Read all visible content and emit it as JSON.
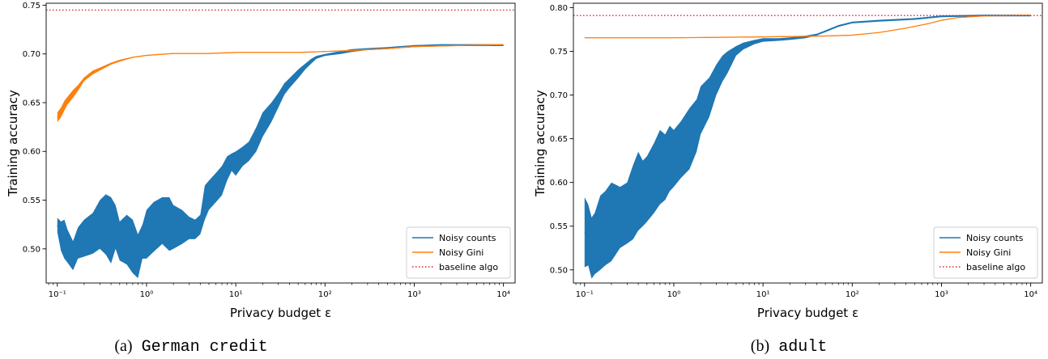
{
  "colors": {
    "counts": "#1f77b4",
    "gini": "#ff7f0e",
    "baseline": "#d62728"
  },
  "chart_data": [
    {
      "type": "line",
      "caption_prefix": "(a)",
      "caption_dataset": "German credit",
      "xlabel": "Privacy budget ε",
      "ylabel": "Training accuracy",
      "xscale": "log",
      "xlim": [
        0.075,
        13500
      ],
      "ylim": [
        0.465,
        0.752
      ],
      "x_ticks": [
        {
          "value": 0.1,
          "label": "10⁻¹"
        },
        {
          "value": 1,
          "label": "10⁰"
        },
        {
          "value": 10,
          "label": "10¹"
        },
        {
          "value": 100,
          "label": "10²"
        },
        {
          "value": 1000,
          "label": "10³"
        },
        {
          "value": 10000,
          "label": "10⁴"
        }
      ],
      "y_ticks": [
        0.5,
        0.55,
        0.6,
        0.65,
        0.7,
        0.75
      ],
      "y_tick_labels": [
        "0.50",
        "0.55",
        "0.60",
        "0.65",
        "0.70",
        "0.75"
      ],
      "grid": false,
      "legend": "bottom-right",
      "baseline": {
        "name": "baseline algo",
        "y": 0.745
      },
      "series": [
        {
          "name": "Noisy counts",
          "color_key": "counts",
          "points": [
            [
              0.1,
              0.517,
              0.532
            ],
            [
              0.11,
              0.498,
              0.528
            ],
            [
              0.12,
              0.49,
              0.53
            ],
            [
              0.13,
              0.486,
              0.52
            ],
            [
              0.15,
              0.478,
              0.508
            ],
            [
              0.17,
              0.49,
              0.522
            ],
            [
              0.2,
              0.492,
              0.53
            ],
            [
              0.25,
              0.495,
              0.537
            ],
            [
              0.3,
              0.5,
              0.55
            ],
            [
              0.35,
              0.494,
              0.556
            ],
            [
              0.4,
              0.485,
              0.553
            ],
            [
              0.45,
              0.5,
              0.545
            ],
            [
              0.5,
              0.488,
              0.528
            ],
            [
              0.6,
              0.484,
              0.535
            ],
            [
              0.7,
              0.475,
              0.53
            ],
            [
              0.8,
              0.47,
              0.515
            ],
            [
              0.9,
              0.49,
              0.525
            ],
            [
              1.0,
              0.49,
              0.54
            ],
            [
              1.2,
              0.497,
              0.548
            ],
            [
              1.5,
              0.505,
              0.553
            ],
            [
              1.8,
              0.498,
              0.553
            ],
            [
              2.0,
              0.5,
              0.545
            ],
            [
              2.5,
              0.505,
              0.54
            ],
            [
              3.0,
              0.51,
              0.533
            ],
            [
              3.5,
              0.51,
              0.53
            ],
            [
              4.0,
              0.515,
              0.535
            ],
            [
              4.5,
              0.53,
              0.565
            ],
            [
              5.0,
              0.54,
              0.57
            ],
            [
              6.0,
              0.548,
              0.578
            ],
            [
              7.0,
              0.555,
              0.585
            ],
            [
              8.0,
              0.57,
              0.595
            ],
            [
              9.0,
              0.58,
              0.598
            ],
            [
              10,
              0.575,
              0.6
            ],
            [
              12,
              0.585,
              0.605
            ],
            [
              14,
              0.59,
              0.61
            ],
            [
              17,
              0.6,
              0.625
            ],
            [
              20,
              0.615,
              0.64
            ],
            [
              25,
              0.63,
              0.65
            ],
            [
              30,
              0.645,
              0.66
            ],
            [
              35,
              0.658,
              0.67
            ],
            [
              40,
              0.665,
              0.675
            ],
            [
              50,
              0.675,
              0.684
            ],
            [
              60,
              0.684,
              0.69
            ],
            [
              70,
              0.69,
              0.695
            ],
            [
              80,
              0.695,
              0.698
            ],
            [
              100,
              0.698,
              0.7
            ],
            [
              150,
              0.7,
              0.703
            ],
            [
              200,
              0.702,
              0.705
            ],
            [
              300,
              0.704,
              0.706
            ],
            [
              500,
              0.705,
              0.707
            ],
            [
              700,
              0.706,
              0.708
            ],
            [
              1000,
              0.707,
              0.709
            ],
            [
              2000,
              0.708,
              0.71
            ],
            [
              5000,
              0.708,
              0.71
            ],
            [
              10000,
              0.708,
              0.71
            ]
          ]
        },
        {
          "name": "Noisy Gini",
          "color_key": "gini",
          "points": [
            [
              0.1,
              0.63,
              0.64
            ],
            [
              0.11,
              0.635,
              0.645
            ],
            [
              0.12,
              0.642,
              0.652
            ],
            [
              0.13,
              0.648,
              0.656
            ],
            [
              0.15,
              0.655,
              0.663
            ],
            [
              0.17,
              0.662,
              0.668
            ],
            [
              0.2,
              0.672,
              0.676
            ],
            [
              0.25,
              0.679,
              0.683
            ],
            [
              0.3,
              0.683,
              0.686
            ],
            [
              0.4,
              0.689,
              0.691
            ],
            [
              0.5,
              0.692,
              0.694
            ],
            [
              0.7,
              0.696,
              0.697
            ],
            [
              1,
              0.698,
              0.699
            ],
            [
              2,
              0.7,
              0.701
            ],
            [
              5,
              0.7,
              0.701
            ],
            [
              10,
              0.701,
              0.702
            ],
            [
              50,
              0.701,
              0.702
            ],
            [
              100,
              0.702,
              0.703
            ],
            [
              200,
              0.703,
              0.704
            ],
            [
              500,
              0.705,
              0.706
            ],
            [
              1000,
              0.707,
              0.708
            ],
            [
              3000,
              0.708,
              0.709
            ],
            [
              10000,
              0.709,
              0.71
            ]
          ]
        }
      ]
    },
    {
      "type": "line",
      "caption_prefix": "(b)",
      "caption_dataset": "adult",
      "xlabel": "Privacy budget ε",
      "ylabel": "Training accuracy",
      "xscale": "log",
      "xlim": [
        0.075,
        13500
      ],
      "ylim": [
        0.485,
        0.805
      ],
      "x_ticks": [
        {
          "value": 0.1,
          "label": "10⁻¹"
        },
        {
          "value": 1,
          "label": "10⁰"
        },
        {
          "value": 10,
          "label": "10¹"
        },
        {
          "value": 100,
          "label": "10²"
        },
        {
          "value": 1000,
          "label": "10³"
        },
        {
          "value": 10000,
          "label": "10⁴"
        }
      ],
      "y_ticks": [
        0.5,
        0.55,
        0.6,
        0.65,
        0.7,
        0.75,
        0.8
      ],
      "y_tick_labels": [
        "0.50",
        "0.55",
        "0.60",
        "0.65",
        "0.70",
        "0.75",
        "0.80"
      ],
      "grid": false,
      "legend": "bottom-right",
      "baseline": {
        "name": "baseline algo",
        "y": 0.791
      },
      "series": [
        {
          "name": "Noisy counts",
          "color_key": "counts",
          "points": [
            [
              0.1,
              0.503,
              0.583
            ],
            [
              0.11,
              0.505,
              0.575
            ],
            [
              0.12,
              0.49,
              0.56
            ],
            [
              0.13,
              0.495,
              0.565
            ],
            [
              0.15,
              0.5,
              0.585
            ],
            [
              0.17,
              0.505,
              0.59
            ],
            [
              0.2,
              0.51,
              0.6
            ],
            [
              0.25,
              0.525,
              0.595
            ],
            [
              0.3,
              0.53,
              0.6
            ],
            [
              0.35,
              0.535,
              0.62
            ],
            [
              0.4,
              0.545,
              0.635
            ],
            [
              0.45,
              0.55,
              0.625
            ],
            [
              0.5,
              0.555,
              0.63
            ],
            [
              0.6,
              0.565,
              0.645
            ],
            [
              0.7,
              0.575,
              0.66
            ],
            [
              0.8,
              0.58,
              0.655
            ],
            [
              0.9,
              0.59,
              0.665
            ],
            [
              1.0,
              0.595,
              0.66
            ],
            [
              1.2,
              0.605,
              0.67
            ],
            [
              1.5,
              0.615,
              0.685
            ],
            [
              1.8,
              0.635,
              0.695
            ],
            [
              2.0,
              0.655,
              0.71
            ],
            [
              2.5,
              0.675,
              0.72
            ],
            [
              3.0,
              0.7,
              0.735
            ],
            [
              3.5,
              0.715,
              0.745
            ],
            [
              4.0,
              0.725,
              0.75
            ],
            [
              5.0,
              0.745,
              0.756
            ],
            [
              6.0,
              0.752,
              0.76
            ],
            [
              8.0,
              0.758,
              0.763
            ],
            [
              10,
              0.761,
              0.765
            ],
            [
              15,
              0.762,
              0.765
            ],
            [
              20,
              0.763,
              0.766
            ],
            [
              30,
              0.765,
              0.768
            ],
            [
              40,
              0.768,
              0.77
            ],
            [
              50,
              0.772,
              0.774
            ],
            [
              70,
              0.778,
              0.78
            ],
            [
              100,
              0.782,
              0.784
            ],
            [
              200,
              0.784,
              0.786
            ],
            [
              500,
              0.786,
              0.788
            ],
            [
              1000,
              0.789,
              0.791
            ],
            [
              3000,
              0.79,
              0.792
            ],
            [
              10000,
              0.79,
              0.792
            ]
          ]
        },
        {
          "name": "Noisy Gini",
          "color_key": "gini",
          "points": [
            [
              0.1,
              0.765,
              0.766
            ],
            [
              1,
              0.765,
              0.766
            ],
            [
              10,
              0.766,
              0.767
            ],
            [
              50,
              0.767,
              0.768
            ],
            [
              100,
              0.768,
              0.769
            ],
            [
              200,
              0.771,
              0.772
            ],
            [
              400,
              0.776,
              0.777
            ],
            [
              700,
              0.781,
              0.782
            ],
            [
              1000,
              0.785,
              0.786
            ],
            [
              1500,
              0.788,
              0.789
            ],
            [
              3000,
              0.79,
              0.791
            ],
            [
              10000,
              0.791,
              0.792
            ]
          ]
        }
      ]
    }
  ]
}
